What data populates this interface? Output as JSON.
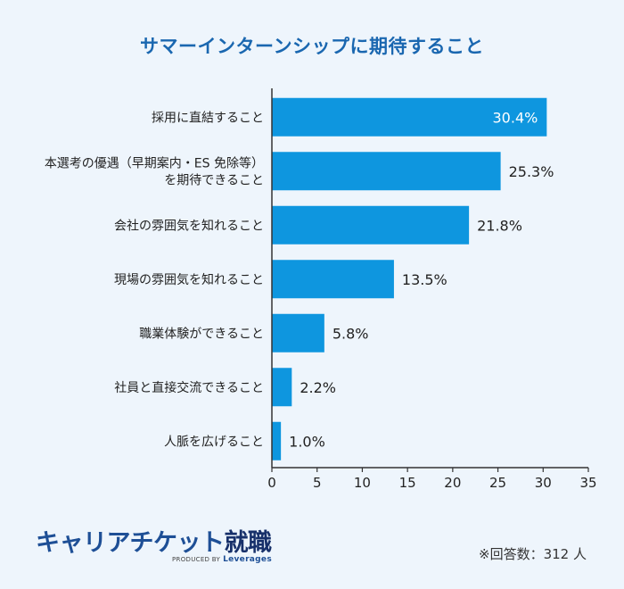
{
  "chart_data": {
    "type": "bar",
    "orientation": "horizontal",
    "title": "サマーインターンシップに期待すること",
    "categories": [
      [
        "採用に直結すること"
      ],
      [
        "本選考の優遇（早期案内・ES 免除等）",
        "を期待できること"
      ],
      [
        "会社の雰囲気を知れること"
      ],
      [
        "現場の雰囲気を知れること"
      ],
      [
        "職業体験ができること"
      ],
      [
        "社員と直接交流できること"
      ],
      [
        "人脈を広げること"
      ]
    ],
    "values": [
      30.4,
      25.3,
      21.8,
      13.5,
      5.8,
      2.2,
      1.0
    ],
    "value_labels": [
      "30.4%",
      "25.3%",
      "21.8%",
      "13.5%",
      "5.8%",
      "2.2%",
      "1.0%"
    ],
    "xlim": [
      0,
      35
    ],
    "xticks": [
      "0",
      "5",
      "10",
      "15",
      "20",
      "25",
      "30",
      "35"
    ],
    "grid": false,
    "bar_color": "#0e96df",
    "label_inside_color": "#ffffff"
  },
  "logo": {
    "main": "キャリアチケット",
    "main_strong": "就職",
    "sub": "PRODUCED BY",
    "brand": "Leverages"
  },
  "note": "※回答数：312 人"
}
